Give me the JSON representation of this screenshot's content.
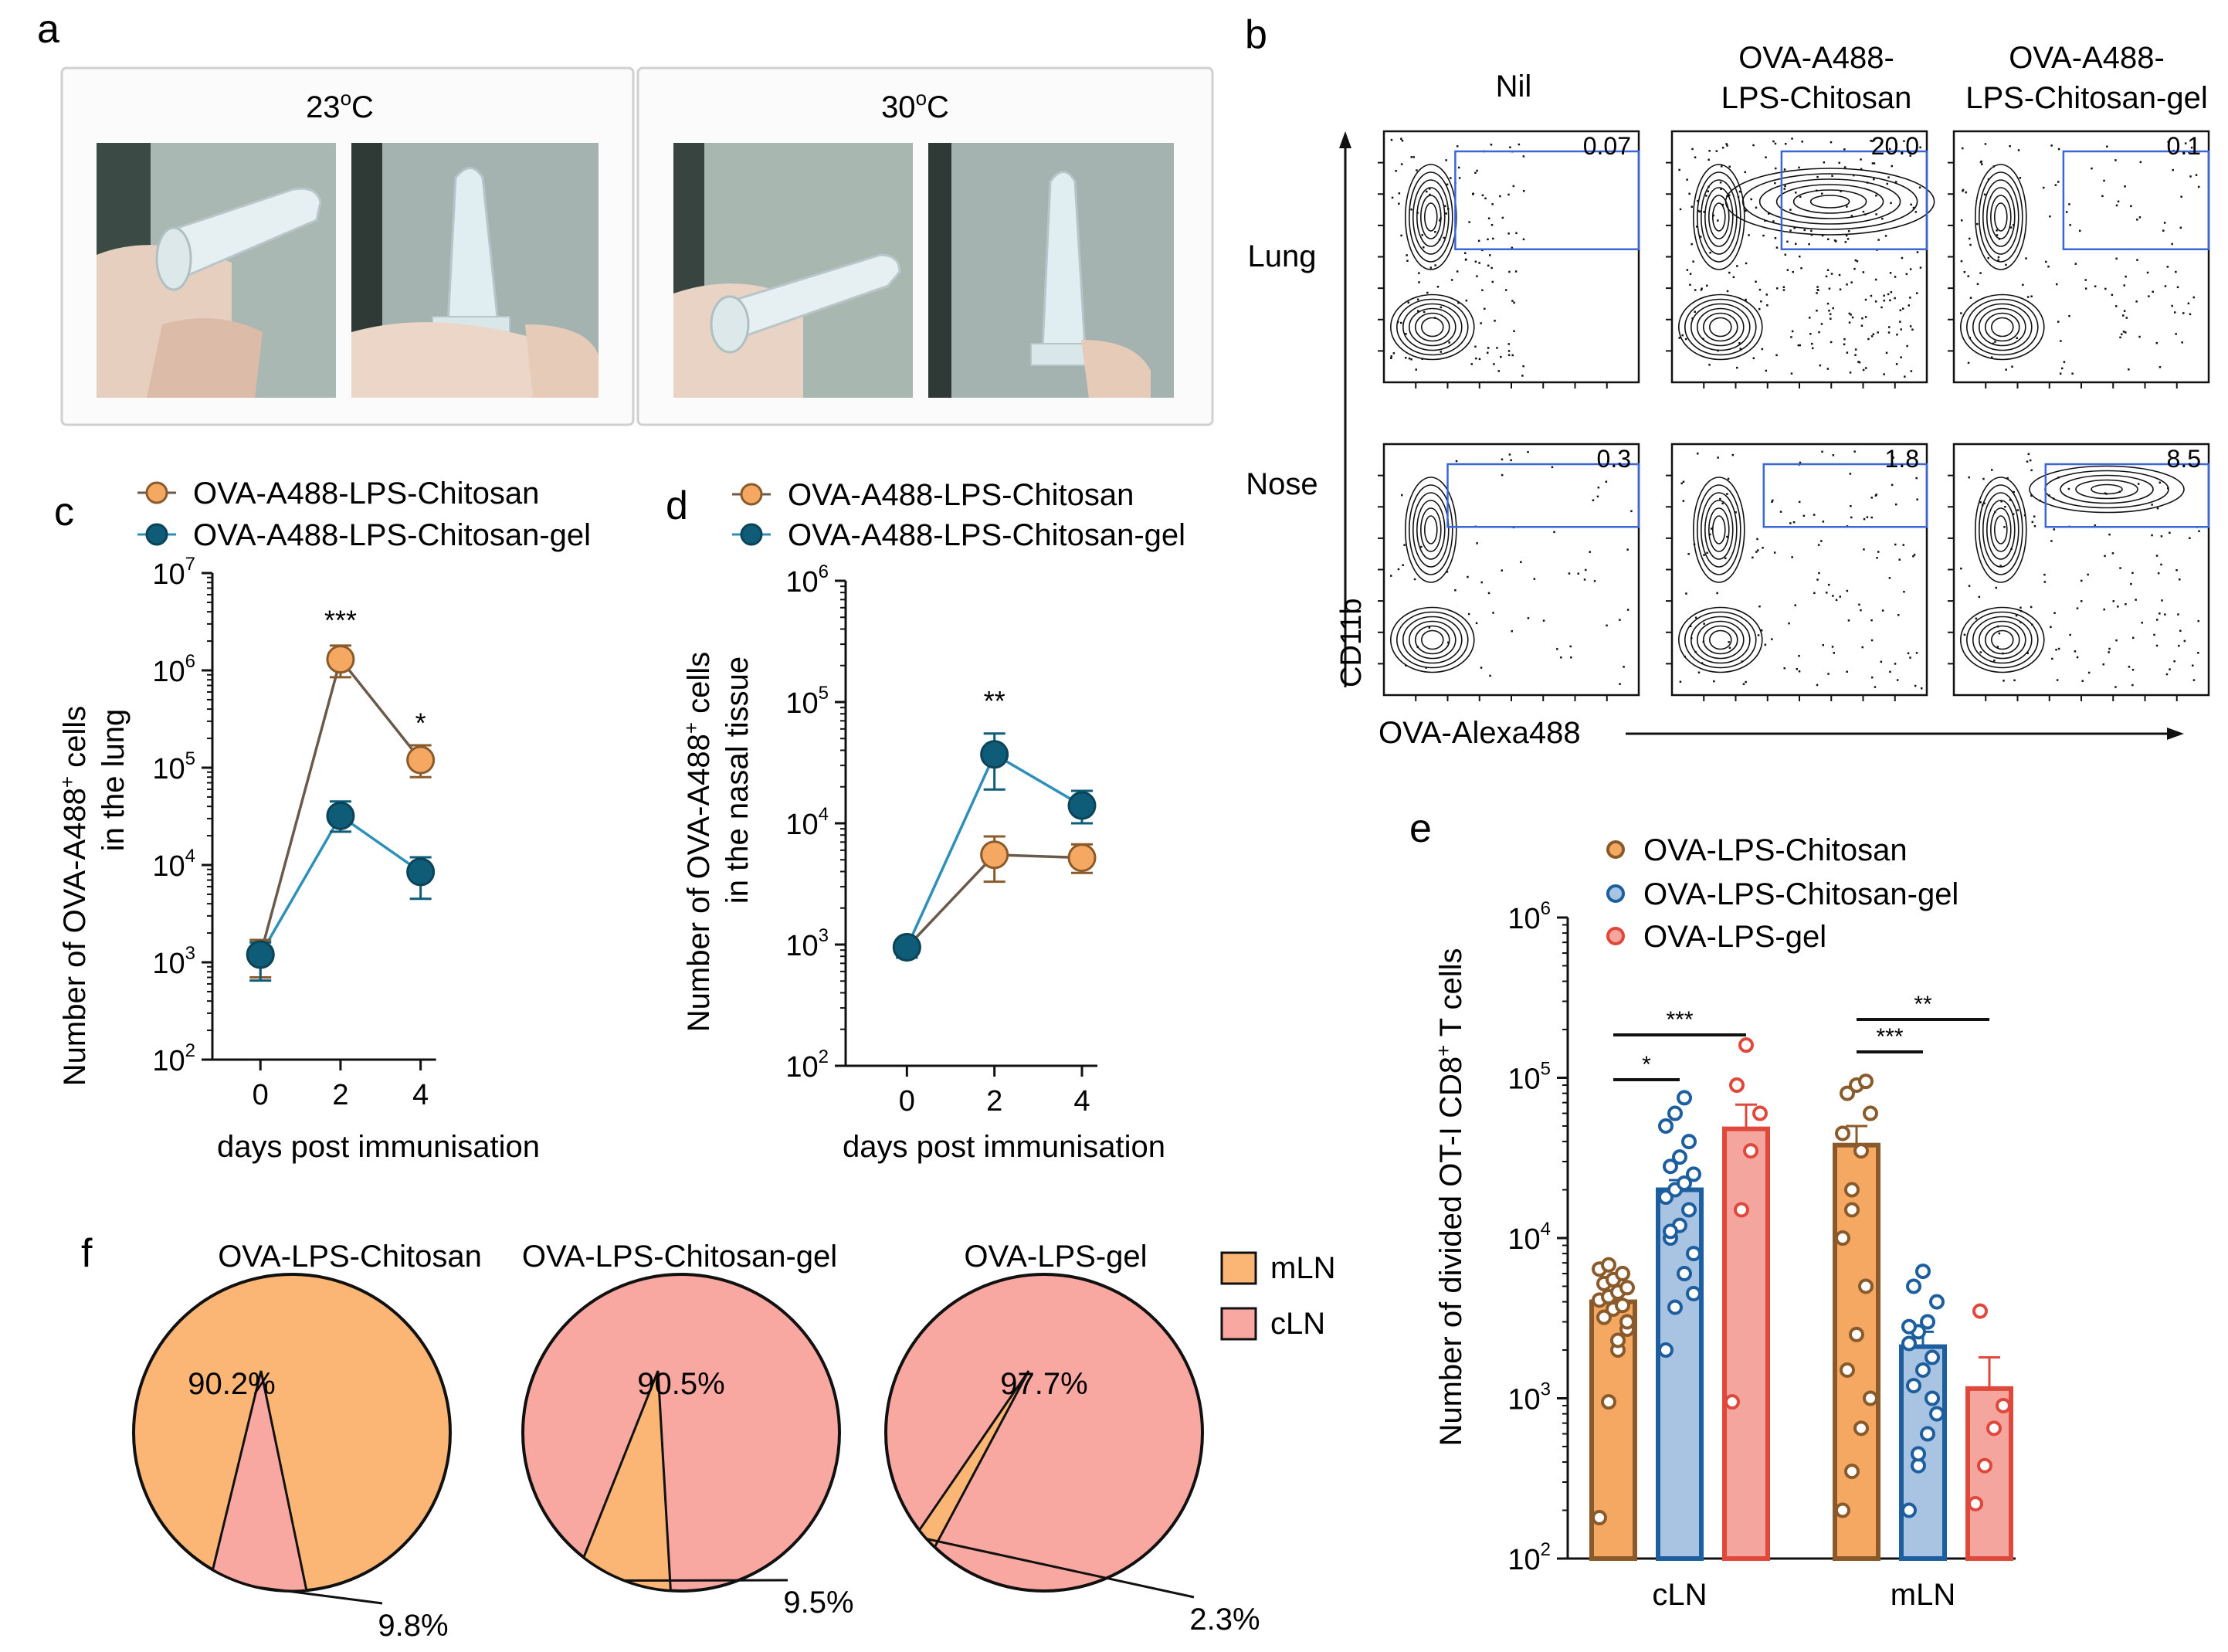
{
  "colors": {
    "orange": "#F4A862",
    "orange_edge": "#8A5A2B",
    "teal": "#0F5C78",
    "teal_line": "#2E8FB8",
    "blue_bar": "#A9C4E2",
    "blue_edge": "#1D5E9E",
    "red_bar": "#F3A59E",
    "red_edge": "#E0483C",
    "pie_orange": "#FBB574",
    "pie_pink": "#F8A8A0",
    "gate": "#3A66D6"
  },
  "panel_a": {
    "label": "a",
    "left_title": "23",
    "left_sup": "o",
    "left_unit": "C",
    "right_title": "30",
    "right_sup": "o",
    "right_unit": "C"
  },
  "panel_b": {
    "label": "b",
    "col_titles": [
      [
        "Nil",
        ""
      ],
      [
        "OVA-A488-",
        "LPS-Chitosan"
      ],
      [
        "OVA-A488-",
        "LPS-Chitosan-gel"
      ]
    ],
    "row_labels": [
      "Lung",
      "Nose"
    ],
    "gate_values": [
      [
        "0.07",
        "20.0",
        "0.1"
      ],
      [
        "0.3",
        "1.8",
        "8.5"
      ]
    ],
    "y_axis": "CD11b",
    "x_axis": "OVA-Alexa488"
  },
  "chart_data": [
    {
      "id": "c",
      "type": "line",
      "label": "c",
      "legend": [
        "OVA-A488-LPS-Chitosan",
        "OVA-A488-LPS-Chitosan-gel"
      ],
      "ylabel_main": "Number of OVA-A488",
      "ylabel_sup": "+",
      "ylabel_tail": " cells",
      "ylabel_line2": "in the lung",
      "xlabel": "days post immunisation",
      "x": [
        0,
        2,
        4
      ],
      "xticks": [
        "0",
        "2",
        "4"
      ],
      "yticks": [
        "7",
        "6",
        "5",
        "4",
        "3",
        "2"
      ],
      "ylim_log10": [
        2,
        7
      ],
      "series": [
        {
          "name": "OVA-A488-LPS-Chitosan",
          "values": [
            1200,
            1300000,
            120000
          ],
          "err_low": [
            700,
            850000,
            80000
          ],
          "err_high": [
            1700,
            1800000,
            170000
          ]
        },
        {
          "name": "OVA-A488-LPS-Chitosan-gel",
          "values": [
            1200,
            32000,
            8500
          ],
          "err_low": [
            650,
            22000,
            4500
          ],
          "err_high": [
            1600,
            45000,
            12000
          ]
        }
      ],
      "significance": [
        "***",
        "*"
      ]
    },
    {
      "id": "d",
      "type": "line",
      "label": "d",
      "legend": [
        "OVA-A488-LPS-Chitosan",
        "OVA-A488-LPS-Chitosan-gel"
      ],
      "ylabel_main": "Number of OVA-A488",
      "ylabel_sup": "+",
      "ylabel_tail": " cells",
      "ylabel_line2": "in the nasal tissue",
      "xlabel": "days post immunisation",
      "x": [
        0,
        2,
        4
      ],
      "xticks": [
        "0",
        "2",
        "4"
      ],
      "yticks": [
        "6",
        "5",
        "4",
        "3",
        "2"
      ],
      "ylim_log10": [
        2,
        6
      ],
      "series": [
        {
          "name": "OVA-A488-LPS-Chitosan",
          "values": [
            950,
            5500,
            5200
          ],
          "err_low": [
            780,
            3300,
            3900
          ],
          "err_high": [
            1100,
            7800,
            6700
          ]
        },
        {
          "name": "OVA-A488-LPS-Chitosan-gel",
          "values": [
            950,
            37000,
            14000
          ],
          "err_low": [
            780,
            19000,
            10000
          ],
          "err_high": [
            1100,
            55000,
            18500
          ]
        }
      ],
      "significance": [
        "**"
      ]
    },
    {
      "id": "e",
      "type": "bar",
      "label": "e",
      "legend": [
        "OVA-LPS-Chitosan",
        "OVA-LPS-Chitosan-gel",
        "OVA-LPS-gel"
      ],
      "ylabel_main": "Number of divided OT-I CD8",
      "ylabel_sup": "+",
      "ylabel_tail": " T cells",
      "categories": [
        "cLN",
        "mLN"
      ],
      "yticks": [
        "6",
        "5",
        "4",
        "3",
        "2"
      ],
      "ylim_log10": [
        2,
        6
      ],
      "series": [
        {
          "name": "OVA-LPS-Chitosan",
          "values": [
            4000,
            38000
          ],
          "err_high": [
            4700,
            50000
          ]
        },
        {
          "name": "OVA-LPS-Chitosan-gel",
          "values": [
            20000,
            2100
          ],
          "err_high": [
            23000,
            2600
          ]
        },
        {
          "name": "OVA-LPS-gel",
          "values": [
            48000,
            1150
          ],
          "err_high": [
            68000,
            1800
          ]
        }
      ],
      "points": [
        [
          [
            180,
            950,
            2000,
            2700,
            3200,
            3600,
            3800,
            4100,
            4300,
            4600,
            4900,
            5200,
            5500,
            6000,
            6400,
            6800,
            2300,
            3000
          ],
          [
            200,
            350,
            650,
            1000,
            1500,
            2500,
            5000,
            10000,
            20000,
            35000,
            60000,
            80000,
            90000,
            95000,
            45000,
            15000
          ]
        ],
        [
          [
            2000,
            3700,
            6000,
            8000,
            10000,
            12000,
            15000,
            18000,
            20000,
            22000,
            25000,
            28000,
            32000,
            40000,
            50000,
            60000,
            75000,
            4500,
            11000
          ],
          [
            200,
            380,
            600,
            800,
            1200,
            1500,
            1800,
            2200,
            2600,
            3000,
            4000,
            5000,
            6200,
            1000,
            2800,
            450
          ]
        ],
        [
          [
            950,
            15000,
            35000,
            60000,
            90000,
            160000
          ],
          [
            220,
            380,
            650,
            900,
            3500
          ]
        ]
      ],
      "significance": [
        "*",
        "***",
        "***",
        "**"
      ]
    },
    {
      "id": "f",
      "type": "pie",
      "label": "f",
      "legend": [
        "mLN",
        "cLN"
      ],
      "pies": [
        {
          "title": "OVA-LPS-Chitosan",
          "mLN": 90.2,
          "cLN": 9.8,
          "major_label": "90.2%",
          "minor_label": "9.8%"
        },
        {
          "title": "OVA-LPS-Chitosan-gel",
          "mLN": 9.5,
          "cLN": 90.5,
          "major_label": "90.5%",
          "minor_label": "9.5%"
        },
        {
          "title": "OVA-LPS-gel",
          "mLN": 2.3,
          "cLN": 97.7,
          "major_label": "97.7%",
          "minor_label": "2.3%"
        }
      ]
    }
  ]
}
